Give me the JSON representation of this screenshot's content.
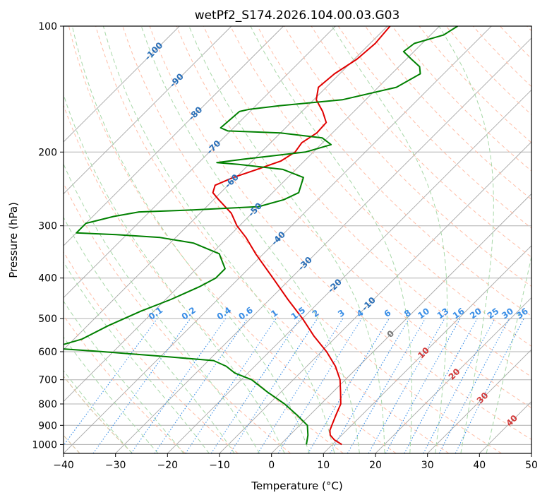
{
  "chart_data": {
    "type": "line",
    "title": "wetPf2_S174.2026.104.00.03.G03",
    "xlabel": "Temperature (°C)",
    "ylabel": "Pressure (hPa)",
    "xlim": [
      -40,
      50
    ],
    "ylim": [
      1050,
      100
    ],
    "y_scale": "log",
    "grid": true,
    "x_ticks": [
      -40,
      -30,
      -20,
      -10,
      0,
      10,
      20,
      30,
      40,
      50
    ],
    "y_ticks": [
      1000,
      900,
      800,
      700,
      600,
      500,
      400,
      300,
      200,
      100
    ],
    "series": [
      {
        "color": "#e00000",
        "points": [
          {
            "p": 1000,
            "t": 11.8
          },
          {
            "p": 975,
            "t": 9.5
          },
          {
            "p": 950,
            "t": 7.8
          },
          {
            "p": 925,
            "t": 6.8
          },
          {
            "p": 900,
            "t": 6.2
          },
          {
            "p": 850,
            "t": 5.0
          },
          {
            "p": 800,
            "t": 3.8
          },
          {
            "p": 750,
            "t": 1.5
          },
          {
            "p": 700,
            "t": -1.0
          },
          {
            "p": 650,
            "t": -4.5
          },
          {
            "p": 600,
            "t": -9.0
          },
          {
            "p": 550,
            "t": -14.5
          },
          {
            "p": 500,
            "t": -20.0
          },
          {
            "p": 450,
            "t": -26.5
          },
          {
            "p": 400,
            "t": -33.5
          },
          {
            "p": 350,
            "t": -41.5
          },
          {
            "p": 320,
            "t": -46.5
          },
          {
            "p": 300,
            "t": -50.5
          },
          {
            "p": 280,
            "t": -54.0
          },
          {
            "p": 260,
            "t": -59.0
          },
          {
            "p": 250,
            "t": -61.5
          },
          {
            "p": 240,
            "t": -62.5
          },
          {
            "p": 230,
            "t": -60.5
          },
          {
            "p": 220,
            "t": -57.5
          },
          {
            "p": 210,
            "t": -54.5
          },
          {
            "p": 200,
            "t": -53.5
          },
          {
            "p": 190,
            "t": -54.0
          },
          {
            "p": 180,
            "t": -53.0
          },
          {
            "p": 170,
            "t": -53.2
          },
          {
            "p": 160,
            "t": -56.0
          },
          {
            "p": 150,
            "t": -59.5
          },
          {
            "p": 140,
            "t": -61.5
          },
          {
            "p": 130,
            "t": -61.0
          },
          {
            "p": 120,
            "t": -59.5
          },
          {
            "p": 110,
            "t": -59.0
          },
          {
            "p": 100,
            "t": -59.5
          }
        ]
      },
      {
        "color": "#008000",
        "points": [
          {
            "p": 1000,
            "t": 5.0
          },
          {
            "p": 950,
            "t": 3.5
          },
          {
            "p": 900,
            "t": 1.5
          },
          {
            "p": 850,
            "t": -2.5
          },
          {
            "p": 800,
            "t": -7.0
          },
          {
            "p": 750,
            "t": -12.5
          },
          {
            "p": 700,
            "t": -18.0
          },
          {
            "p": 675,
            "t": -22.5
          },
          {
            "p": 650,
            "t": -25.5
          },
          {
            "p": 630,
            "t": -29.0
          },
          {
            "p": 615,
            "t": -40.0
          },
          {
            "p": 600,
            "t": -52.0
          },
          {
            "p": 590,
            "t": -61.0
          },
          {
            "p": 580,
            "t": -61.5
          },
          {
            "p": 560,
            "t": -58.5
          },
          {
            "p": 520,
            "t": -56.0
          },
          {
            "p": 480,
            "t": -52.5
          },
          {
            "p": 450,
            "t": -49.0
          },
          {
            "p": 420,
            "t": -46.0
          },
          {
            "p": 400,
            "t": -44.5
          },
          {
            "p": 380,
            "t": -44.5
          },
          {
            "p": 350,
            "t": -48.5
          },
          {
            "p": 330,
            "t": -55.5
          },
          {
            "p": 320,
            "t": -63.0
          },
          {
            "p": 315,
            "t": -72.0
          },
          {
            "p": 312,
            "t": -80.0
          },
          {
            "p": 296,
            "t": -80.0
          },
          {
            "p": 285,
            "t": -76.0
          },
          {
            "p": 278,
            "t": -72.0
          },
          {
            "p": 275,
            "t": -62.0
          },
          {
            "p": 270,
            "t": -50.0
          },
          {
            "p": 260,
            "t": -46.5
          },
          {
            "p": 250,
            "t": -45.0
          },
          {
            "p": 230,
            "t": -47.0
          },
          {
            "p": 220,
            "t": -52.5
          },
          {
            "p": 214,
            "t": -62.0
          },
          {
            "p": 212,
            "t": -66.5
          },
          {
            "p": 208,
            "t": -62.0
          },
          {
            "p": 200,
            "t": -51.5
          },
          {
            "p": 192,
            "t": -48.0
          },
          {
            "p": 185,
            "t": -51.0
          },
          {
            "p": 180,
            "t": -60.0
          },
          {
            "p": 178,
            "t": -70.5
          },
          {
            "p": 175,
            "t": -72.5
          },
          {
            "p": 160,
            "t": -72.0
          },
          {
            "p": 158,
            "t": -70.5
          },
          {
            "p": 155,
            "t": -65.5
          },
          {
            "p": 150,
            "t": -54.5
          },
          {
            "p": 140,
            "t": -46.5
          },
          {
            "p": 130,
            "t": -44.5
          },
          {
            "p": 125,
            "t": -46.0
          },
          {
            "p": 120,
            "t": -49.0
          },
          {
            "p": 115,
            "t": -52.0
          },
          {
            "p": 110,
            "t": -51.5
          },
          {
            "p": 105,
            "t": -47.5
          },
          {
            "p": 100,
            "t": -46.5
          }
        ]
      }
    ],
    "isotherm_labels": [
      "-100",
      "-90",
      "-80",
      "-70",
      "-60",
      "-50",
      "-40",
      "-30",
      "-20",
      "-10",
      "0",
      "10",
      "20",
      "30",
      "40"
    ],
    "mixing_ratio_labels": [
      "0.1",
      "0.2",
      "0.4",
      "0.6",
      "1",
      "1.5",
      "2",
      "3",
      "4",
      "6",
      "8",
      "10",
      "13",
      "16",
      "20",
      "25",
      "30",
      "36"
    ]
  }
}
